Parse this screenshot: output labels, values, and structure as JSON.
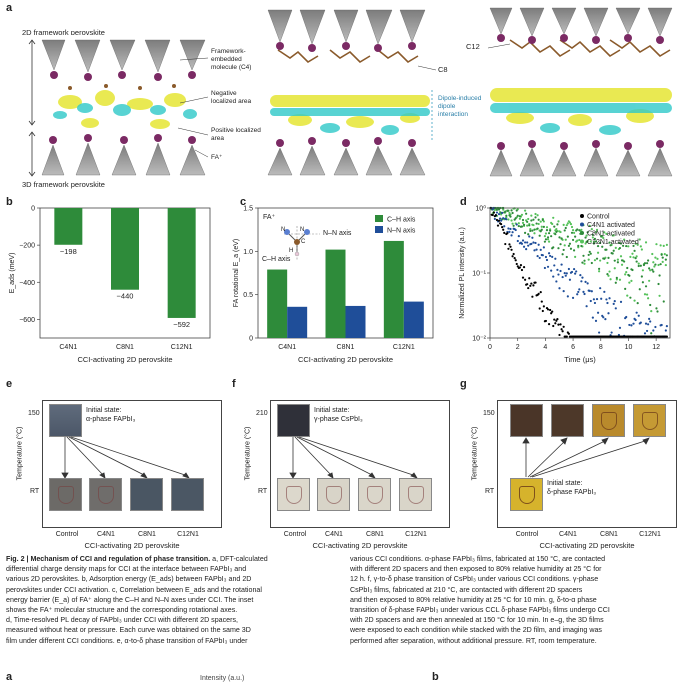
{
  "panel_a": {
    "label": "a",
    "top_label": "2D framework perovskite",
    "bottom_label": "3D framework perovskite",
    "annot_framework": "Framework-embedded molecule (C4)",
    "annot_negative": "Negative localized area",
    "annot_positive": "Positive localized area",
    "annot_fa": "FA⁺",
    "annot_c8": "C8",
    "annot_dipole": "Dipole-induced dipole interaction",
    "annot_c12": "C12"
  },
  "panel_b": {
    "label": "b"
  },
  "panel_c": {
    "label": "c",
    "inset_fa": "FA⁺",
    "inset_nn": "N–N axis",
    "inset_ch": "C–H axis",
    "atom_n1": "N",
    "atom_n2": "N",
    "atom_c": "C",
    "atom_h": "H"
  },
  "panel_d": {
    "label": "d"
  },
  "panel_e": {
    "label": "e",
    "state_line1": "Initial state:",
    "state_line2": "α-phase FAPbI₃",
    "ylabel": "Temperature (°C)",
    "tick_high": "150",
    "tick_low": "RT",
    "xlabel": "CCI-activating 2D perovskite",
    "categories": [
      "Control",
      "C4N1",
      "C8N1",
      "C12N1"
    ]
  },
  "panel_f": {
    "label": "f",
    "state_line1": "Initial state:",
    "state_line2": "γ-phase CsPbI₃",
    "ylabel": "Temperature (°C)",
    "tick_high": "210",
    "tick_low": "RT",
    "xlabel": "CCI-activating 2D perovskite",
    "categories": [
      "Control",
      "C4N1",
      "C8N1",
      "C12N1"
    ]
  },
  "panel_g": {
    "label": "g",
    "state_line1": "Initial state:",
    "state_line2": "δ-phase FAPbI₃",
    "ylabel": "Temperature (°C)",
    "tick_high": "150",
    "tick_low": "RT",
    "xlabel": "CCI-activating 2D perovskite",
    "categories": [
      "Control",
      "C4N1",
      "C8N1",
      "C12N1"
    ]
  },
  "chart_data": [
    {
      "type": "bar",
      "title": "",
      "categories": [
        "C4N1",
        "C8N1",
        "C12N1"
      ],
      "values": [
        -198,
        -440,
        -592
      ],
      "value_labels": [
        "−198",
        "−440",
        "−592"
      ],
      "xlabel": "CCI-activating 2D perovskite",
      "ylabel": "E_ads (meV)",
      "ylim": [
        -700,
        0
      ],
      "yticks": [
        0,
        -200,
        -400,
        -600
      ],
      "ytick_labels": [
        "0",
        "−200",
        "−400",
        "−600"
      ],
      "color": "#2e8b3a"
    },
    {
      "type": "bar",
      "title": "",
      "categories": [
        "C4N1",
        "C8N1",
        "C12N1"
      ],
      "series": [
        {
          "name": "C–H axis",
          "values": [
            0.79,
            1.02,
            1.12
          ],
          "color": "#2e8b3a"
        },
        {
          "name": "N–N axis",
          "values": [
            0.36,
            0.37,
            0.42
          ],
          "color": "#1f4e99"
        }
      ],
      "xlabel": "CCI-activating 2D perovskite",
      "ylabel": "FA rotational E_a (eV)",
      "ylim": [
        0,
        1.5
      ],
      "yticks": [
        0,
        0.5,
        1.0,
        1.5
      ],
      "ytick_labels": [
        "0",
        "0.5",
        "1.0",
        "1.5"
      ]
    },
    {
      "type": "scatter",
      "title": "",
      "xlabel": "Time (μs)",
      "ylabel": "Normalized PL intensity (a.u.)",
      "xlim": [
        0,
        13
      ],
      "xticks": [
        0,
        2,
        4,
        6,
        8,
        10,
        12
      ],
      "ylim_log": [
        0.01,
        1
      ],
      "ytick_labels": [
        "10⁰",
        "10⁻¹",
        "10⁻²"
      ],
      "series": [
        {
          "name": "Control",
          "color": "#000000",
          "tau": 1.1,
          "floor": 0.004
        },
        {
          "name": "C4N1 activated",
          "color": "#1f4e99",
          "tau": 2.3,
          "floor": 0.008
        },
        {
          "name": "C8N1 activated",
          "color": "#2e8b3a",
          "tau": 5.2,
          "floor": 0.02
        },
        {
          "name": "C12N1 activated",
          "color": "#55c25a",
          "tau": 6.2,
          "floor": 0.03
        }
      ]
    }
  ],
  "caption": {
    "title": "Fig. 2 | Mechanism of CCI and regulation of phase transition.",
    "col1": [
      " a, DFT-calculated",
      "differential charge density maps for CCI at the interface between FAPbI₃ and",
      "various 2D perovskites. b, Adsorption energy (E_ads) between FAPbI₃ and 2D",
      "perovskites under CCI activation. c, Correlation between E_ads and the rotational",
      "energy barrier (E_a) of FA⁺ along the C–H and N–N axes under CCI. The inset",
      "shows the FA⁺ molecular structure and the corresponding rotational axes.",
      "d, Time-resolved PL decay of FAPbI₃ under CCI with different 2D spacers,",
      "measured without heat or pressure. Each curve was obtained on the same 3D",
      "film under different CCI conditions. e, α-to-δ phase transition of FAPbI₃ under"
    ],
    "col2": [
      "various CCI conditions. α-phase FAPbI₃ films, fabricated at 150 °C, are contacted",
      "with different 2D spacers and then exposed to 80% relative humidity at 25 °C for",
      "12 h. f, γ-to-δ phase transition of CsPbI₃ under various CCI conditions. γ-phase",
      "CsPbI₃ films, fabricated at 210 °C, are contacted with different 2D spacers",
      "and then exposed to 80% relative humidity at 25 °C for 10 min. g, δ-to-α phase",
      "transition of δ-phase FAPbI₃ under various CCL δ-phase FAPbI₃ films undergo CCI",
      "with 2D spacers and are then annealed at 150 °C for 10 min. In e–g, the 3D films",
      "were exposed to each condition while stacked with the 2D film, and imaging was",
      "performed after separation, without additional pressure. RT, room temperature."
    ]
  },
  "footer": {
    "left_label": "a",
    "center_text": "Intensity (a.u.)",
    "right_label": "b"
  }
}
